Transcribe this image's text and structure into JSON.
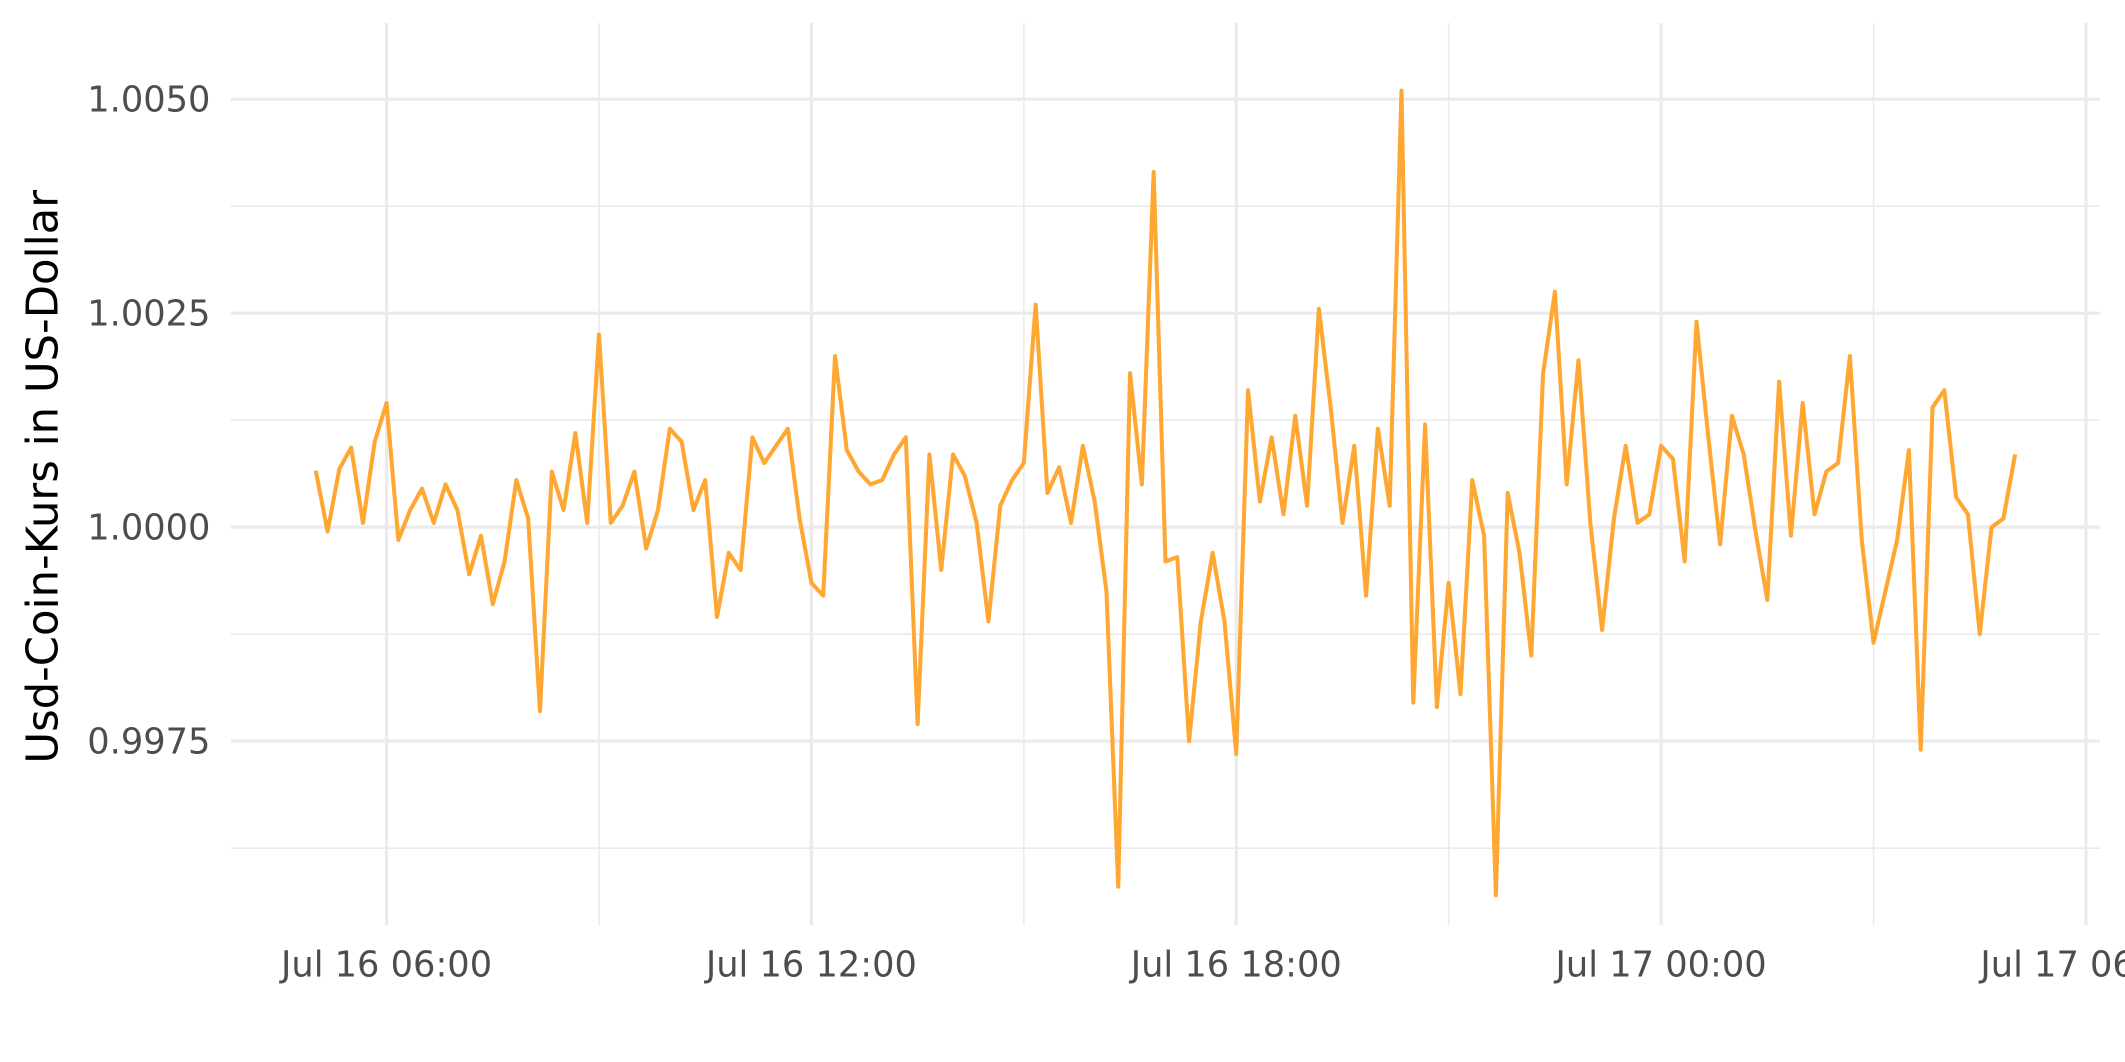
{
  "chart_data": {
    "type": "line",
    "y_label": "Usd-Coin-Kurs in US-Dollar",
    "xlim": [
      "Jul 16 03:48",
      "Jul 17 06:12"
    ],
    "xticks": [
      "Jul 16 06:00",
      "Jul 16 12:00",
      "Jul 16 18:00",
      "Jul 17 00:00",
      "Jul 17 06:00"
    ],
    "ylim": [
      0.99535,
      1.00589
    ],
    "yticks": [
      0.9975,
      {
        "value": 1.0,
        "label": "1.0000"
      },
      1.0025,
      {
        "value": 1.005,
        "label": "1.0050"
      }
    ],
    "grid": true,
    "x": [
      "Jul 16 05:00",
      "Jul 16 05:10",
      "Jul 16 05:20",
      "Jul 16 05:30",
      "Jul 16 05:40",
      "Jul 16 05:50",
      "Jul 16 06:00",
      "Jul 16 06:10",
      "Jul 16 06:20",
      "Jul 16 06:30",
      "Jul 16 06:40",
      "Jul 16 06:50",
      "Jul 16 07:00",
      "Jul 16 07:10",
      "Jul 16 07:20",
      "Jul 16 07:30",
      "Jul 16 07:40",
      "Jul 16 07:50",
      "Jul 16 08:00",
      "Jul 16 08:10",
      "Jul 16 08:20",
      "Jul 16 08:30",
      "Jul 16 08:40",
      "Jul 16 08:50",
      "Jul 16 09:00",
      "Jul 16 09:10",
      "Jul 16 09:20",
      "Jul 16 09:30",
      "Jul 16 09:40",
      "Jul 16 09:50",
      "Jul 16 10:00",
      "Jul 16 10:10",
      "Jul 16 10:20",
      "Jul 16 10:30",
      "Jul 16 10:40",
      "Jul 16 10:50",
      "Jul 16 11:00",
      "Jul 16 11:10",
      "Jul 16 11:20",
      "Jul 16 11:30",
      "Jul 16 11:40",
      "Jul 16 11:50",
      "Jul 16 12:00",
      "Jul 16 12:10",
      "Jul 16 12:20",
      "Jul 16 12:30",
      "Jul 16 12:40",
      "Jul 16 12:50",
      "Jul 16 13:00",
      "Jul 16 13:10",
      "Jul 16 13:20",
      "Jul 16 13:30",
      "Jul 16 13:40",
      "Jul 16 13:50",
      "Jul 16 14:00",
      "Jul 16 14:10",
      "Jul 16 14:20",
      "Jul 16 14:30",
      "Jul 16 14:40",
      "Jul 16 14:50",
      "Jul 16 15:00",
      "Jul 16 15:10",
      "Jul 16 15:20",
      "Jul 16 15:30",
      "Jul 16 15:40",
      "Jul 16 15:50",
      "Jul 16 16:00",
      "Jul 16 16:10",
      "Jul 16 16:20",
      "Jul 16 16:30",
      "Jul 16 16:40",
      "Jul 16 16:50",
      "Jul 16 17:00",
      "Jul 16 17:10",
      "Jul 16 17:20",
      "Jul 16 17:30",
      "Jul 16 17:40",
      "Jul 16 17:50",
      "Jul 16 18:00",
      "Jul 16 18:10",
      "Jul 16 18:20",
      "Jul 16 18:30",
      "Jul 16 18:40",
      "Jul 16 18:50",
      "Jul 16 19:00",
      "Jul 16 19:10",
      "Jul 16 19:20",
      "Jul 16 19:30",
      "Jul 16 19:40",
      "Jul 16 19:50",
      "Jul 16 20:00",
      "Jul 16 20:10",
      "Jul 16 20:20",
      "Jul 16 20:30",
      "Jul 16 20:40",
      "Jul 16 20:50",
      "Jul 16 21:00",
      "Jul 16 21:10",
      "Jul 16 21:20",
      "Jul 16 21:30",
      "Jul 16 21:40",
      "Jul 16 21:50",
      "Jul 16 22:00",
      "Jul 16 22:10",
      "Jul 16 22:20",
      "Jul 16 22:30",
      "Jul 16 22:40",
      "Jul 16 22:50",
      "Jul 16 23:00",
      "Jul 16 23:10",
      "Jul 16 23:20",
      "Jul 16 23:30",
      "Jul 16 23:40",
      "Jul 16 23:50",
      "Jul 17 00:00",
      "Jul 17 00:10",
      "Jul 17 00:20",
      "Jul 17 00:30",
      "Jul 17 00:40",
      "Jul 17 00:50",
      "Jul 17 01:00",
      "Jul 17 01:10",
      "Jul 17 01:20",
      "Jul 17 01:30",
      "Jul 17 01:40",
      "Jul 17 01:50",
      "Jul 17 02:00",
      "Jul 17 02:10",
      "Jul 17 02:20",
      "Jul 17 02:30",
      "Jul 17 02:40",
      "Jul 17 02:50",
      "Jul 17 03:00",
      "Jul 17 03:10",
      "Jul 17 03:20",
      "Jul 17 03:30",
      "Jul 17 03:40",
      "Jul 17 03:50",
      "Jul 17 04:00",
      "Jul 17 04:10",
      "Jul 17 04:20",
      "Jul 17 04:30",
      "Jul 17 04:40",
      "Jul 17 04:50",
      "Jul 17 05:00"
    ],
    "series": [
      {
        "name": "Usd-Coin",
        "color": "#ffa733",
        "values": [
          1.00066,
          0.99995,
          1.00068,
          1.00093,
          1.00005,
          1.001,
          1.00145,
          0.99985,
          1.0002,
          1.00045,
          1.00005,
          1.0005,
          1.0002,
          0.99945,
          0.9999,
          0.9991,
          0.9996,
          1.00055,
          1.0001,
          0.99785,
          1.00065,
          1.0002,
          1.0011,
          1.00005,
          1.00225,
          1.00005,
          1.00025,
          1.00065,
          0.99975,
          1.0002,
          1.00115,
          1.001,
          1.0002,
          1.00055,
          0.99895,
          0.9997,
          0.9995,
          1.00105,
          1.00075,
          1.00095,
          1.00115,
          1.0001,
          0.99935,
          0.9992,
          1.002,
          1.0009,
          1.00065,
          1.0005,
          1.00055,
          1.00085,
          1.00105,
          0.9977,
          1.00085,
          0.9995,
          1.00085,
          1.0006,
          1.00005,
          0.9989,
          1.00025,
          1.00055,
          1.00075,
          1.0026,
          1.0004,
          1.0007,
          1.00005,
          1.00095,
          1.0003,
          0.99925,
          0.9958,
          1.0018,
          1.0005,
          1.00415,
          0.9996,
          0.99965,
          0.9975,
          0.9989,
          0.9997,
          0.9989,
          0.99735,
          1.0016,
          1.0003,
          1.00105,
          1.00015,
          1.0013,
          1.00025,
          1.00255,
          1.0014,
          1.00005,
          1.00095,
          0.9992,
          1.00115,
          1.00025,
          1.0051,
          0.99795,
          1.0012,
          0.9979,
          0.99935,
          0.99805,
          1.00055,
          0.9999,
          0.9957,
          1.0004,
          0.9997,
          0.9985,
          1.0018,
          1.00275,
          1.0005,
          1.00195,
          1.00005,
          0.9988,
          1.0001,
          1.00095,
          1.00005,
          1.00015,
          1.00095,
          1.0008,
          0.9996,
          1.0024,
          1.00105,
          0.9998,
          1.0013,
          1.00085,
          0.99995,
          0.99915,
          1.0017,
          0.9999,
          1.00145,
          1.00015,
          1.00065,
          1.00075,
          1.002,
          0.99985,
          0.99865,
          0.99925,
          0.99985,
          1.0009,
          0.9974,
          1.0014,
          1.0016,
          1.00035,
          1.00015,
          0.99875,
          1.0,
          1.0001,
          1.00085
        ]
      }
    ]
  }
}
